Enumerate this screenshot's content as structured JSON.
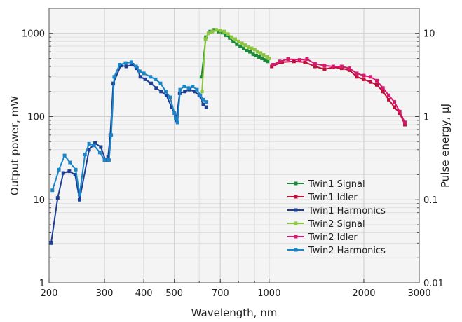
{
  "chart_data": {
    "type": "line",
    "xlabel": "Wavelength, nm",
    "ylabel": "Output power, mW",
    "y2label": "Pulse energy, µJ",
    "xscale": "log",
    "yscale": "log",
    "xlim": [
      200,
      3000
    ],
    "ylim": [
      1,
      2000
    ],
    "y2lim": [
      0.01,
      20
    ],
    "grid": true,
    "legend_position": "lower-right",
    "x_ticks": [
      {
        "value": 200,
        "label": "200"
      },
      {
        "value": 300,
        "label": "300"
      },
      {
        "value": 400,
        "label": "400"
      },
      {
        "value": 500,
        "label": "500"
      },
      {
        "value": 700,
        "label": "700"
      },
      {
        "value": 1000,
        "label": "1000"
      },
      {
        "value": 2000,
        "label": "2000"
      },
      {
        "value": 3000,
        "label": "3000"
      }
    ],
    "y_ticks": [
      {
        "value": 1,
        "label": "1"
      },
      {
        "value": 10,
        "label": "10"
      },
      {
        "value": 100,
        "label": "100"
      },
      {
        "value": 1000,
        "label": "1000"
      }
    ],
    "y2_ticks": [
      {
        "value": 0.01,
        "label": "0.01"
      },
      {
        "value": 0.1,
        "label": "0.1"
      },
      {
        "value": 1,
        "label": "1"
      },
      {
        "value": 10,
        "label": "10"
      }
    ],
    "series": [
      {
        "name": "Twin1 Signal",
        "color": "#1a8a3a",
        "points": [
          [
            610,
            300
          ],
          [
            630,
            900
          ],
          [
            650,
            1050
          ],
          [
            670,
            1100
          ],
          [
            690,
            1050
          ],
          [
            710,
            1020
          ],
          [
            730,
            950
          ],
          [
            750,
            880
          ],
          [
            770,
            800
          ],
          [
            790,
            740
          ],
          [
            810,
            700
          ],
          [
            830,
            660
          ],
          [
            850,
            620
          ],
          [
            870,
            600
          ],
          [
            890,
            560
          ],
          [
            910,
            540
          ],
          [
            930,
            520
          ],
          [
            950,
            500
          ],
          [
            970,
            480
          ],
          [
            990,
            460
          ]
        ]
      },
      {
        "name": "Twin1 Idler",
        "color": "#c0103a",
        "points": [
          [
            1020,
            400
          ],
          [
            1100,
            450
          ],
          [
            1200,
            460
          ],
          [
            1300,
            450
          ],
          [
            1400,
            400
          ],
          [
            1500,
            370
          ],
          [
            1600,
            390
          ],
          [
            1700,
            380
          ],
          [
            1800,
            360
          ],
          [
            1900,
            300
          ],
          [
            2000,
            280
          ],
          [
            2100,
            260
          ],
          [
            2200,
            240
          ],
          [
            2300,
            200
          ],
          [
            2400,
            160
          ],
          [
            2500,
            130
          ],
          [
            2600,
            110
          ],
          [
            2700,
            80
          ]
        ]
      },
      {
        "name": "Twin1 Harmonics",
        "color": "#1c3f94",
        "points": [
          [
            203,
            3
          ],
          [
            213,
            10.5
          ],
          [
            222,
            21
          ],
          [
            232,
            22
          ],
          [
            242,
            20
          ],
          [
            250,
            10
          ],
          [
            268,
            40
          ],
          [
            280,
            48
          ],
          [
            292,
            43
          ],
          [
            302,
            30
          ],
          [
            308,
            33
          ],
          [
            313,
            60
          ],
          [
            320,
            250
          ],
          [
            338,
            410
          ],
          [
            352,
            400
          ],
          [
            368,
            420
          ],
          [
            380,
            380
          ],
          [
            390,
            300
          ],
          [
            404,
            280
          ],
          [
            422,
            250
          ],
          [
            438,
            220
          ],
          [
            454,
            200
          ],
          [
            472,
            180
          ],
          [
            490,
            130
          ],
          [
            505,
            100
          ],
          [
            507,
            90
          ],
          [
            520,
            190
          ],
          [
            540,
            200
          ],
          [
            560,
            210
          ],
          [
            580,
            200
          ],
          [
            600,
            180
          ],
          [
            618,
            140
          ],
          [
            632,
            130
          ]
        ]
      },
      {
        "name": "Twin2 Signal",
        "color": "#8cc63f",
        "points": [
          [
            612,
            200
          ],
          [
            628,
            850
          ],
          [
            642,
            1000
          ],
          [
            660,
            1050
          ],
          [
            680,
            1100
          ],
          [
            700,
            1080
          ],
          [
            720,
            1050
          ],
          [
            740,
            980
          ],
          [
            760,
            900
          ],
          [
            780,
            850
          ],
          [
            800,
            800
          ],
          [
            820,
            760
          ],
          [
            840,
            720
          ],
          [
            860,
            680
          ],
          [
            880,
            660
          ],
          [
            900,
            640
          ],
          [
            920,
            600
          ],
          [
            940,
            580
          ],
          [
            960,
            550
          ],
          [
            985,
            520
          ],
          [
            1000,
            500
          ]
        ]
      },
      {
        "name": "Twin2 Idler",
        "color": "#d6186e",
        "points": [
          [
            1030,
            420
          ],
          [
            1080,
            460
          ],
          [
            1150,
            490
          ],
          [
            1250,
            480
          ],
          [
            1320,
            490
          ],
          [
            1400,
            430
          ],
          [
            1500,
            410
          ],
          [
            1600,
            400
          ],
          [
            1700,
            400
          ],
          [
            1800,
            380
          ],
          [
            1900,
            330
          ],
          [
            2000,
            310
          ],
          [
            2100,
            300
          ],
          [
            2200,
            270
          ],
          [
            2300,
            220
          ],
          [
            2400,
            180
          ],
          [
            2500,
            150
          ],
          [
            2600,
            115
          ],
          [
            2700,
            85
          ]
        ]
      },
      {
        "name": "Twin2 Harmonics",
        "color": "#1a86c8",
        "points": [
          [
            205,
            13
          ],
          [
            215,
            23
          ],
          [
            224,
            34
          ],
          [
            233,
            28
          ],
          [
            243,
            23
          ],
          [
            250,
            11.5
          ],
          [
            260,
            35
          ],
          [
            268,
            47
          ],
          [
            278,
            45
          ],
          [
            290,
            37
          ],
          [
            300,
            30
          ],
          [
            310,
            30
          ],
          [
            315,
            60
          ],
          [
            322,
            300
          ],
          [
            335,
            420
          ],
          [
            350,
            440
          ],
          [
            365,
            450
          ],
          [
            378,
            400
          ],
          [
            388,
            350
          ],
          [
            400,
            330
          ],
          [
            420,
            300
          ],
          [
            436,
            280
          ],
          [
            452,
            250
          ],
          [
            470,
            200
          ],
          [
            485,
            170
          ],
          [
            500,
            110
          ],
          [
            505,
            95
          ],
          [
            512,
            85
          ],
          [
            522,
            210
          ],
          [
            538,
            230
          ],
          [
            555,
            220
          ],
          [
            572,
            230
          ],
          [
            590,
            210
          ],
          [
            605,
            180
          ],
          [
            618,
            160
          ],
          [
            632,
            150
          ]
        ]
      }
    ]
  }
}
